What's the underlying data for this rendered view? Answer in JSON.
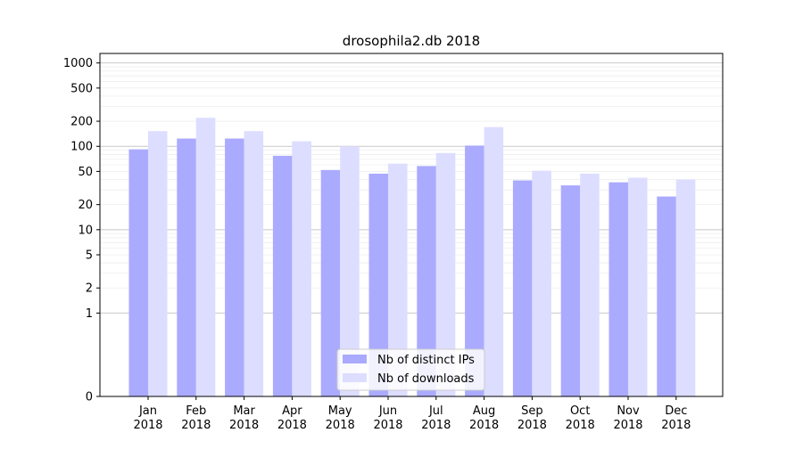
{
  "chart_data": {
    "type": "bar",
    "title": "drosophila2.db 2018",
    "xlabel": "",
    "ylabel": "",
    "y_scale": "symlog",
    "ylim": [
      0,
      1300
    ],
    "grid": "horizontal",
    "legend_position": "lower-center",
    "categories": [
      [
        "Jan",
        "2018"
      ],
      [
        "Feb",
        "2018"
      ],
      [
        "Mar",
        "2018"
      ],
      [
        "Apr",
        "2018"
      ],
      [
        "May",
        "2018"
      ],
      [
        "Jun",
        "2018"
      ],
      [
        "Jul",
        "2018"
      ],
      [
        "Aug",
        "2018"
      ],
      [
        "Sep",
        "2018"
      ],
      [
        "Oct",
        "2018"
      ],
      [
        "Nov",
        "2018"
      ],
      [
        "Dec",
        "2018"
      ]
    ],
    "y_ticks": [
      0,
      1,
      2,
      5,
      10,
      20,
      50,
      100,
      200,
      500,
      1000
    ],
    "series": [
      {
        "name": "Nb of distinct IPs",
        "color": "#aaaaff",
        "values": [
          92,
          124,
          124,
          77,
          52,
          47,
          58,
          102,
          39,
          34,
          37,
          25
        ]
      },
      {
        "name": "Nb of downloads",
        "color": "#ddddff",
        "values": [
          152,
          220,
          152,
          115,
          100,
          62,
          83,
          170,
          51,
          47,
          42,
          40
        ]
      }
    ]
  }
}
